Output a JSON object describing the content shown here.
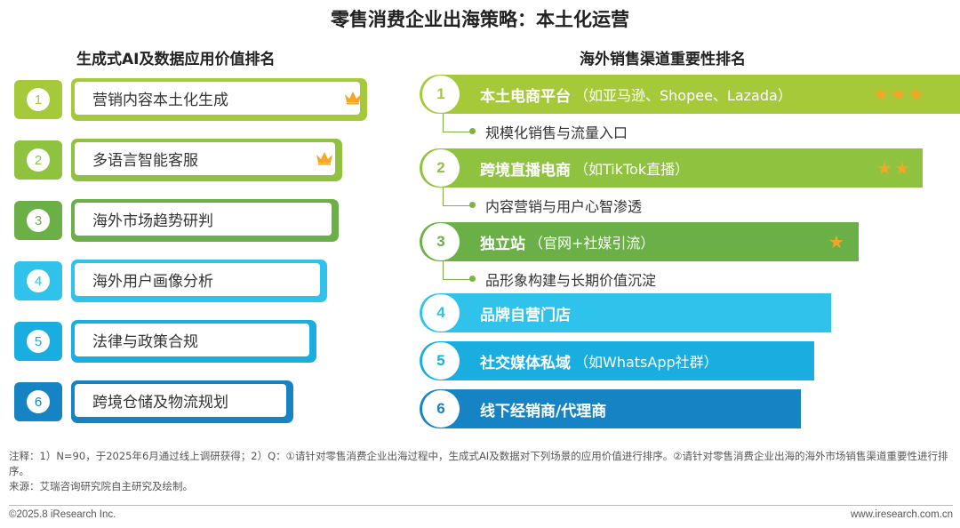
{
  "title": "零售消费企业出海策略：本土化运营",
  "left": {
    "heading": "生成式AI及数据应用价值排名",
    "items": [
      {
        "num": "1",
        "label": "营销内容本土化生成",
        "color": "#a6c93a",
        "crown": true
      },
      {
        "num": "2",
        "label": "多语言智能客服",
        "color": "#8fc33f",
        "crown": true
      },
      {
        "num": "3",
        "label": "海外市场趋势研判",
        "color": "#6ab046",
        "crown": false
      },
      {
        "num": "4",
        "label": "海外用户画像分析",
        "color": "#2fc3ec",
        "crown": false
      },
      {
        "num": "5",
        "label": "法律与政策合规",
        "color": "#1aaee0",
        "crown": false
      },
      {
        "num": "6",
        "label": "跨境仓储及物流规划",
        "color": "#1583c4",
        "crown": false
      }
    ]
  },
  "right": {
    "heading": "海外销售渠道重要性排名",
    "items": [
      {
        "num": "1",
        "name": "本土电商平台",
        "detail": "（如亚马逊、Shopee、Lazada）",
        "stars": "★★★",
        "sub": "规模化销售与流量入口",
        "color": "#a6c93a"
      },
      {
        "num": "2",
        "name": "跨境直播电商",
        "detail": "（如TikTok直播）",
        "stars": "★★",
        "sub": "内容营销与用户心智渗透",
        "color": "#8fc33f"
      },
      {
        "num": "3",
        "name": "独立站",
        "detail": "（官网+社媒引流）",
        "stars": "★",
        "sub": "品形象构建与长期价值沉淀",
        "color": "#6ab046"
      },
      {
        "num": "4",
        "name": "品牌自营门店",
        "detail": "",
        "stars": "",
        "sub": "",
        "color": "#2fc3ec"
      },
      {
        "num": "5",
        "name": "社交媒体私域",
        "detail": "（如WhatsApp社群）",
        "stars": "",
        "sub": "",
        "color": "#1aaee0"
      },
      {
        "num": "6",
        "name": "线下经销商/代理商",
        "detail": "",
        "stars": "",
        "sub": "",
        "color": "#1583c4"
      }
    ]
  },
  "footer": {
    "note": "注释：1）N=90，于2025年6月通过线上调研获得；2）Q：①请针对零售消费企业出海过程中，生成式AI及数据对下列场景的应用价值进行排序。②请针对零售消费企业出海的海外市场销售渠道重要性进行排序。",
    "source": "来源：艾瑞咨询研究院自主研究及绘制。",
    "copyright": "©2025.8 iResearch Inc.",
    "website": "www.iresearch.com.cn"
  }
}
